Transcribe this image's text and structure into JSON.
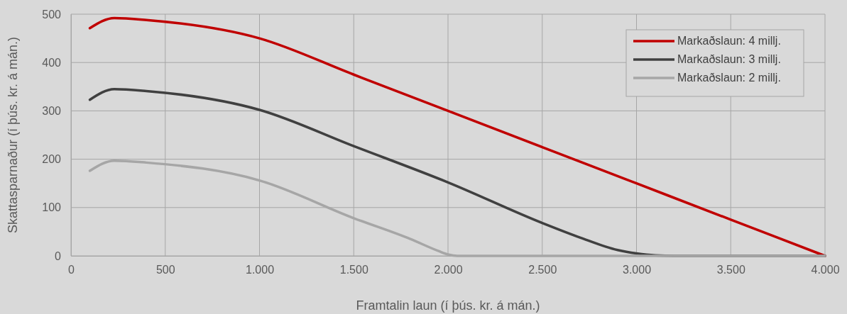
{
  "chart_data": {
    "type": "line",
    "xlabel": "Framtalin laun (í þús. kr. á mán.)",
    "ylabel": "Skattasparnaður (í þús. kr. á mán.)",
    "xlim": [
      0,
      4000
    ],
    "ylim": [
      0,
      500
    ],
    "xticks": [
      0,
      500,
      {
        "value": 1000,
        "label": "1.000"
      },
      {
        "value": 1500,
        "label": "1.500"
      },
      {
        "value": 2000,
        "label": "2.000"
      },
      {
        "value": 2500,
        "label": "2.500"
      },
      {
        "value": 3000,
        "label": "3.000"
      },
      {
        "value": 3500,
        "label": "3.500"
      },
      {
        "value": 4000,
        "label": "4.000"
      }
    ],
    "yticks": [
      0,
      100,
      200,
      300,
      400,
      500
    ],
    "grid": true,
    "legend": "top right",
    "line_style": "solid",
    "marker": "none",
    "series": [
      {
        "name": "Markaðslaun: 4 millj.",
        "color": "#c00000",
        "x": [
          100,
          230,
          400,
          1000,
          1500,
          2000,
          2500,
          3000,
          3500,
          4000
        ],
        "values": [
          471,
          492,
          488,
          450,
          375,
          300,
          225,
          150,
          75,
          0
        ]
      },
      {
        "name": "Markaðslaun: 3 millj.",
        "color": "#404040",
        "x": [
          100,
          230,
          400,
          1000,
          1500,
          2000,
          2500,
          2700,
          2900,
          3000,
          3100,
          3200,
          4000
        ],
        "values": [
          323,
          345,
          341,
          302,
          227,
          152,
          68,
          38,
          12,
          5,
          1,
          0,
          0
        ]
      },
      {
        "name": "Markaðslaun: 2 millj.",
        "color": "#a6a6a6",
        "x": [
          100,
          230,
          400,
          1000,
          1500,
          1800,
          1950,
          2000,
          2050,
          4000
        ],
        "values": [
          176,
          197,
          193,
          156,
          78,
          35,
          10,
          3,
          0,
          0
        ]
      }
    ]
  }
}
